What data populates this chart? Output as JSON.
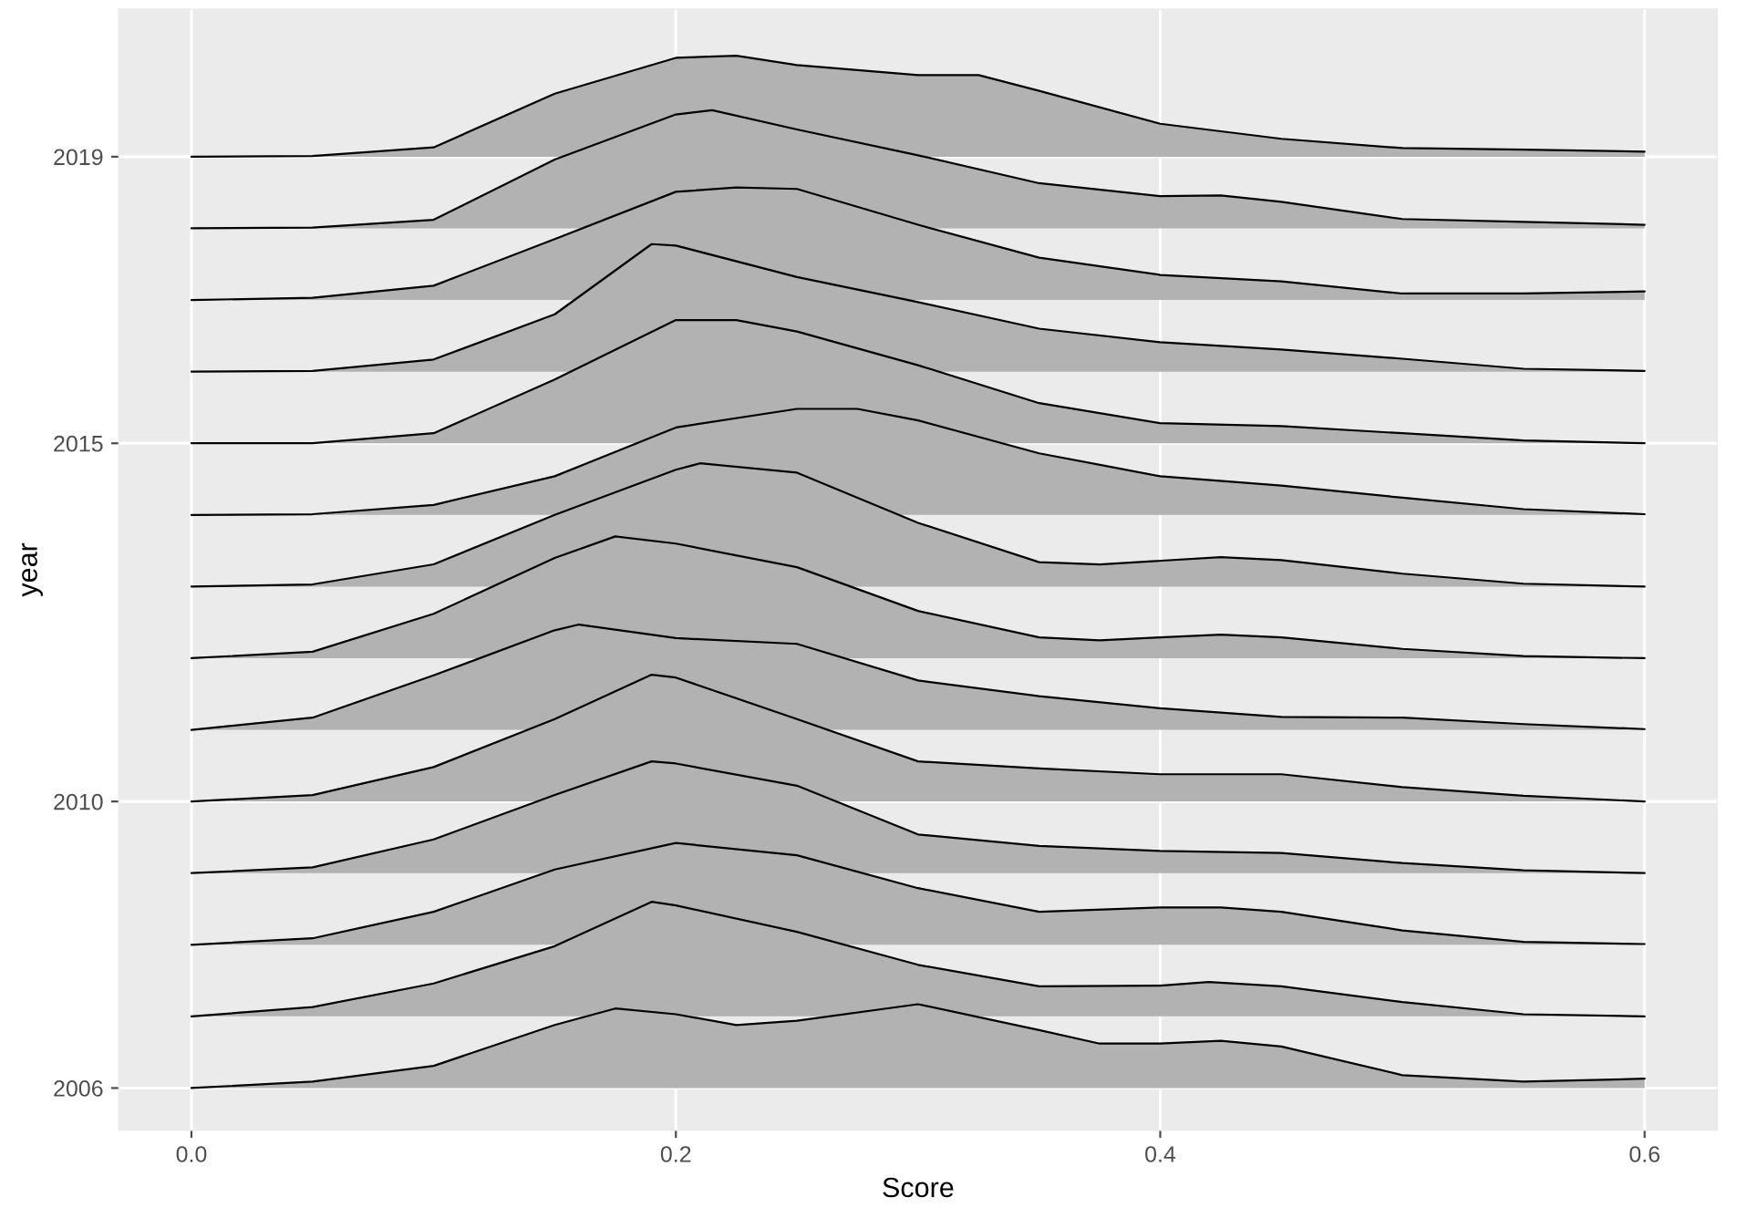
{
  "chart_data": {
    "type": "area",
    "xlabel": "Score",
    "ylabel": "year",
    "xlim": [
      -0.03,
      0.63
    ],
    "xticks": [
      {
        "value": 0,
        "label": "0.0"
      },
      0.2,
      0.4,
      0.6
    ],
    "ylim": [
      2005.41,
      2021.06
    ],
    "yticks": [
      2006,
      2010,
      2015,
      2019
    ],
    "grid": true,
    "series": [
      {
        "color": "#b2b2b2",
        "x": [
          0,
          0.05,
          0.1,
          0.15,
          0.175,
          0.2,
          0.225,
          0.25,
          0.3,
          0.35,
          0.375,
          0.4,
          0.425,
          0.45,
          0.5,
          0.55,
          0.6
        ],
        "values": [
          2006,
          2006.09,
          2006.31,
          2006.88,
          2007.11,
          2007.03,
          2006.88,
          2006.94,
          2007.17,
          2006.81,
          2006.62,
          2006.62,
          2006.66,
          2006.58,
          2006.18,
          2006.09,
          2006.13
        ]
      },
      {
        "color": "#b2b2b2",
        "x": [
          0,
          0.05,
          0.1,
          0.15,
          0.19,
          0.2,
          0.25,
          0.3,
          0.35,
          0.4,
          0.42,
          0.45,
          0.5,
          0.55,
          0.6
        ],
        "values": [
          2007,
          2007.13,
          2007.46,
          2007.98,
          2008.6,
          2008.55,
          2008.18,
          2007.72,
          2007.42,
          2007.43,
          2007.48,
          2007.42,
          2007.2,
          2007.03,
          2007
        ]
      },
      {
        "color": "#b2b2b2",
        "x": [
          0,
          0.05,
          0.1,
          0.15,
          0.2,
          0.25,
          0.3,
          0.35,
          0.4,
          0.425,
          0.45,
          0.5,
          0.55,
          0.6
        ],
        "values": [
          2008,
          2008.09,
          2008.46,
          2009.05,
          2009.42,
          2009.25,
          2008.79,
          2008.46,
          2008.52,
          2008.52,
          2008.46,
          2008.2,
          2008.04,
          2008.01
        ]
      },
      {
        "color": "#b2b2b2",
        "x": [
          0,
          0.05,
          0.1,
          0.15,
          0.19,
          0.2,
          0.25,
          0.3,
          0.35,
          0.4,
          0.45,
          0.5,
          0.55,
          0.6
        ],
        "values": [
          2009,
          2009.08,
          2009.47,
          2010.09,
          2010.56,
          2010.53,
          2010.22,
          2009.54,
          2009.38,
          2009.31,
          2009.28,
          2009.14,
          2009.04,
          2009
        ]
      },
      {
        "color": "#b2b2b2",
        "x": [
          0,
          0.05,
          0.1,
          0.15,
          0.19,
          0.2,
          0.25,
          0.3,
          0.35,
          0.4,
          0.45,
          0.5,
          0.55,
          0.6
        ],
        "values": [
          2010,
          2010.09,
          2010.48,
          2011.15,
          2011.77,
          2011.73,
          2011.15,
          2010.56,
          2010.46,
          2010.38,
          2010.38,
          2010.2,
          2010.08,
          2010
        ]
      },
      {
        "color": "#b2b2b2",
        "x": [
          0,
          0.05,
          0.1,
          0.15,
          0.16,
          0.2,
          0.25,
          0.3,
          0.35,
          0.4,
          0.45,
          0.5,
          0.55,
          0.6
        ],
        "values": [
          2011,
          2011.17,
          2011.76,
          2012.39,
          2012.47,
          2012.28,
          2012.2,
          2011.69,
          2011.47,
          2011.3,
          2011.18,
          2011.17,
          2011.08,
          2011.01
        ]
      },
      {
        "color": "#b2b2b2",
        "x": [
          0,
          0.05,
          0.1,
          0.15,
          0.175,
          0.2,
          0.25,
          0.3,
          0.35,
          0.375,
          0.4,
          0.425,
          0.45,
          0.5,
          0.55,
          0.6
        ],
        "values": [
          2012,
          2012.09,
          2012.62,
          2013.4,
          2013.7,
          2013.6,
          2013.27,
          2012.66,
          2012.29,
          2012.25,
          2012.29,
          2012.33,
          2012.29,
          2012.13,
          2012.03,
          2012
        ]
      },
      {
        "color": "#b2b2b2",
        "x": [
          0,
          0.05,
          0.1,
          0.15,
          0.2,
          0.21,
          0.25,
          0.3,
          0.35,
          0.375,
          0.425,
          0.45,
          0.5,
          0.55,
          0.6
        ],
        "values": [
          2013,
          2013.03,
          2013.31,
          2014,
          2014.63,
          2014.72,
          2014.59,
          2013.89,
          2013.34,
          2013.31,
          2013.41,
          2013.37,
          2013.18,
          2013.04,
          2013
        ]
      },
      {
        "color": "#b2b2b2",
        "x": [
          0,
          0.05,
          0.1,
          0.15,
          0.2,
          0.25,
          0.275,
          0.3,
          0.35,
          0.4,
          0.45,
          0.5,
          0.55,
          0.6
        ],
        "values": [
          2014,
          2014.01,
          2014.14,
          2014.54,
          2015.22,
          2015.48,
          2015.48,
          2015.32,
          2014.86,
          2014.54,
          2014.41,
          2014.24,
          2014.08,
          2014.01
        ]
      },
      {
        "color": "#b2b2b2",
        "x": [
          0,
          0.05,
          0.1,
          0.15,
          0.2,
          0.225,
          0.25,
          0.3,
          0.35,
          0.4,
          0.45,
          0.5,
          0.55,
          0.6
        ],
        "values": [
          2015,
          2015,
          2015.14,
          2015.89,
          2016.72,
          2016.72,
          2016.56,
          2016.09,
          2015.56,
          2015.28,
          2015.24,
          2015.14,
          2015.04,
          2015
        ]
      },
      {
        "color": "#b2b2b2",
        "x": [
          0,
          0.05,
          0.1,
          0.15,
          0.19,
          0.2,
          0.25,
          0.3,
          0.35,
          0.4,
          0.45,
          0.5,
          0.55,
          0.6
        ],
        "values": [
          2016,
          2016.01,
          2016.17,
          2016.8,
          2017.78,
          2017.76,
          2017.32,
          2016.97,
          2016.6,
          2016.41,
          2016.31,
          2016.18,
          2016.04,
          2016.01
        ]
      },
      {
        "color": "#b2b2b2",
        "x": [
          0,
          0.05,
          0.1,
          0.15,
          0.2,
          0.225,
          0.25,
          0.3,
          0.35,
          0.4,
          0.45,
          0.5,
          0.55,
          0.6
        ],
        "values": [
          2017,
          2017.03,
          2017.2,
          2017.85,
          2018.51,
          2018.57,
          2018.55,
          2018.05,
          2017.59,
          2017.35,
          2017.26,
          2017.09,
          2017.09,
          2017.12
        ]
      },
      {
        "color": "#b2b2b2",
        "x": [
          0,
          0.05,
          0.1,
          0.15,
          0.2,
          0.215,
          0.25,
          0.3,
          0.35,
          0.4,
          0.425,
          0.45,
          0.5,
          0.55,
          0.6
        ],
        "values": [
          2018,
          2018.01,
          2018.12,
          2018.96,
          2019.59,
          2019.65,
          2019.38,
          2019.02,
          2018.63,
          2018.45,
          2018.46,
          2018.37,
          2018.13,
          2018.09,
          2018.05
        ]
      },
      {
        "color": "#b2b2b2",
        "x": [
          0,
          0.05,
          0.1,
          0.15,
          0.2,
          0.225,
          0.25,
          0.3,
          0.325,
          0.35,
          0.4,
          0.45,
          0.5,
          0.55,
          0.6
        ],
        "values": [
          2019,
          2019.01,
          2019.13,
          2019.88,
          2020.38,
          2020.41,
          2020.28,
          2020.14,
          2020.14,
          2019.92,
          2019.46,
          2019.25,
          2019.12,
          2019.1,
          2019.07
        ]
      }
    ]
  }
}
